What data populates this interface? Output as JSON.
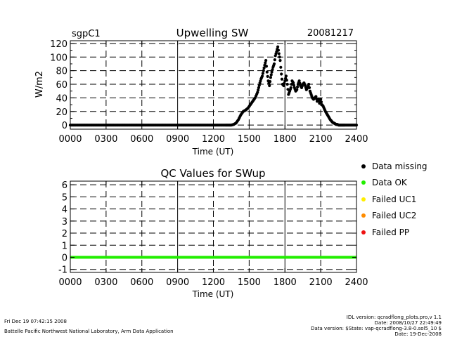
{
  "header": {
    "site": "sgpC1",
    "date": "20081217"
  },
  "chart_data": [
    {
      "type": "scatter",
      "title": "Upwelling SW",
      "xlabel": "Time (UT)",
      "ylabel": "W/m2",
      "xlim": [
        0,
        2400
      ],
      "ylim": [
        -6,
        124
      ],
      "xticks": [
        "0000",
        "0300",
        "0600",
        "0900",
        "1200",
        "1500",
        "1800",
        "2100",
        "2400"
      ],
      "yticks": [
        "0",
        "20",
        "40",
        "60",
        "80",
        "100",
        "120"
      ],
      "grid": true,
      "series": [
        {
          "color": "#000000",
          "x": [
            0,
            200,
            400,
            600,
            800,
            1000,
            1200,
            1300,
            1330,
            1350,
            1370,
            1390,
            1410,
            1430,
            1450,
            1470,
            1490,
            1510,
            1530,
            1550,
            1570,
            1580,
            1590,
            1600,
            1610,
            1620,
            1630,
            1640,
            1650,
            1660,
            1670,
            1680,
            1690,
            1700,
            1710,
            1720,
            1730,
            1740,
            1750,
            1760,
            1770,
            1780,
            1790,
            1800,
            1810,
            1820,
            1830,
            1840,
            1850,
            1860,
            1870,
            1880,
            1890,
            1900,
            1910,
            1920,
            1930,
            1940,
            1950,
            1960,
            1970,
            1980,
            1990,
            2000,
            2010,
            2020,
            2030,
            2040,
            2050,
            2060,
            2070,
            2080,
            2090,
            2100,
            2110,
            2120,
            2130,
            2140,
            2150,
            2160,
            2170,
            2180,
            2190,
            2200,
            2210,
            2220,
            2230,
            2240,
            2250,
            2260,
            2270,
            2280,
            2290,
            2300,
            2320,
            2340,
            2360,
            2380,
            2400
          ],
          "y": [
            0,
            0,
            0,
            0,
            0,
            0,
            0,
            0,
            0,
            0,
            1,
            3,
            8,
            15,
            20,
            22,
            25,
            30,
            35,
            40,
            48,
            55,
            62,
            68,
            72,
            80,
            88,
            95,
            78,
            65,
            58,
            70,
            78,
            85,
            90,
            102,
            108,
            115,
            105,
            95,
            75,
            60,
            58,
            65,
            72,
            60,
            45,
            50,
            55,
            65,
            62,
            55,
            50,
            52,
            60,
            65,
            58,
            55,
            60,
            62,
            58,
            52,
            55,
            60,
            50,
            45,
            40,
            38,
            40,
            42,
            35,
            38,
            32,
            38,
            30,
            28,
            24,
            20,
            17,
            14,
            11,
            8,
            6,
            4,
            3,
            2,
            1,
            1,
            0,
            0,
            0,
            0,
            0,
            0,
            0,
            0,
            0,
            0,
            0
          ]
        }
      ]
    },
    {
      "type": "line",
      "title": "QC Values for SWup",
      "xlabel": "Time (UT)",
      "ylabel": "",
      "xlim": [
        0,
        2400
      ],
      "ylim": [
        -1.25,
        6.3
      ],
      "xticks": [
        "0000",
        "0300",
        "0600",
        "0900",
        "1200",
        "1500",
        "1800",
        "2100",
        "2400"
      ],
      "yticks": [
        "-1",
        "0",
        "1",
        "2",
        "3",
        "4",
        "5",
        "6"
      ],
      "grid": true,
      "series": [
        {
          "color": "#22ee00",
          "x": [
            0,
            2400
          ],
          "y": [
            0,
            0
          ]
        }
      ]
    }
  ],
  "legend": [
    {
      "label": "Data missing",
      "color": "#000000"
    },
    {
      "label": "Data OK",
      "color": "#22ee00"
    },
    {
      "label": "Failed UC1",
      "color": "#ffee00"
    },
    {
      "label": "Failed UC2",
      "color": "#ff8c00"
    },
    {
      "label": "Failed PP",
      "color": "#ee1111"
    }
  ],
  "footer": {
    "timestamp": "Fri Dec 19 07:42:15 2008",
    "lab": "Battelle Pacific Northwest National Laboratory, Arm Data Application",
    "idl_version": "IDL version: qcradflong_plots.pro,v 1.1",
    "idl_date": "Date: 2008/10/27 22:49:49",
    "data_version": "Data version: $State: vap-qcradflong-3.8-0.sol5_10 $",
    "data_date": "Date: 19-Dec-2008"
  }
}
